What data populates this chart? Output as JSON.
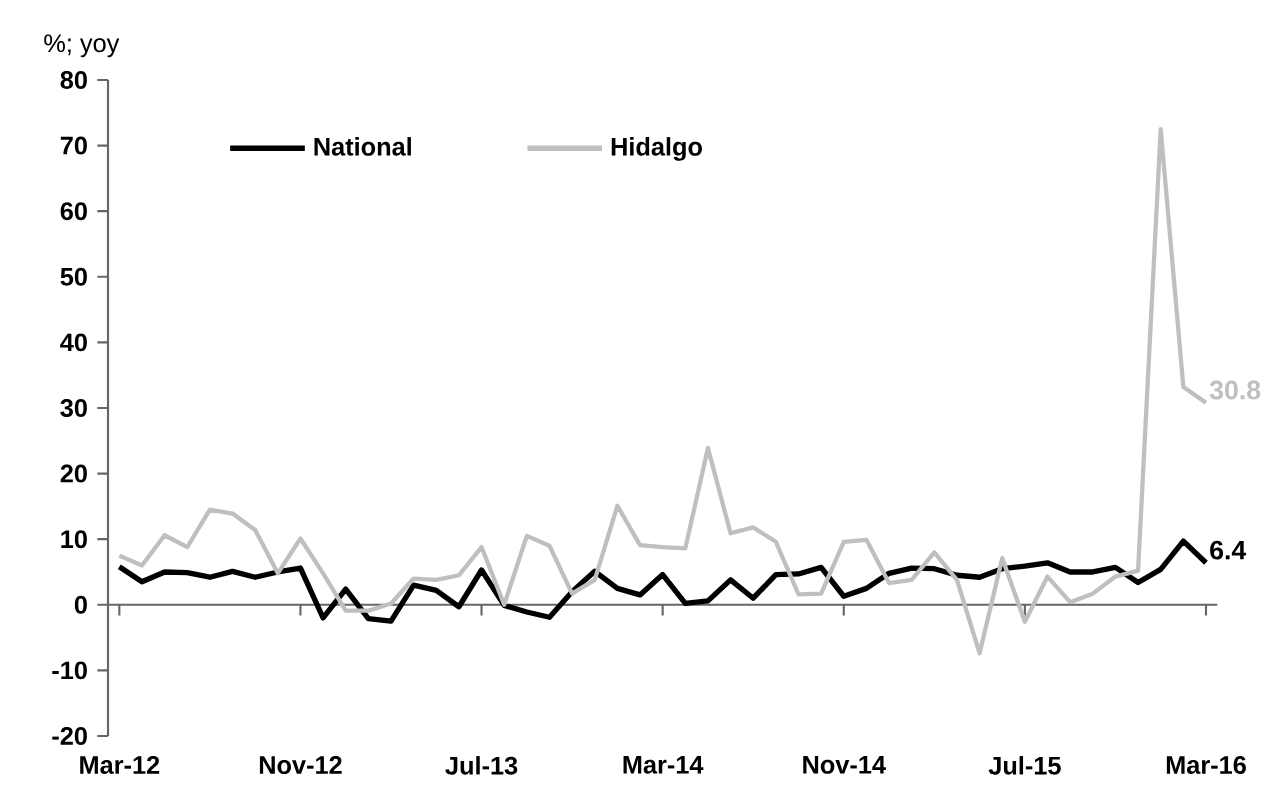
{
  "chart_data": {
    "type": "line",
    "ylabel": "%; yoy",
    "categories": [
      "Mar-12",
      null,
      null,
      null,
      null,
      null,
      null,
      null,
      "Nov-12",
      null,
      null,
      null,
      null,
      null,
      null,
      null,
      "Jul-13",
      null,
      null,
      null,
      null,
      null,
      null,
      null,
      "Mar-14",
      null,
      null,
      null,
      null,
      null,
      null,
      null,
      "Nov-14",
      null,
      null,
      null,
      null,
      null,
      null,
      null,
      "Jul-15",
      null,
      null,
      null,
      null,
      null,
      null,
      null,
      "Mar-16"
    ],
    "series": [
      {
        "name": "National",
        "color": "#000000",
        "values": [
          5.8,
          3.5,
          5.0,
          4.9,
          4.2,
          5.1,
          4.2,
          5.0,
          5.6,
          -2.0,
          2.4,
          -2.1,
          -2.5,
          3.0,
          2.2,
          -0.3,
          5.3,
          -0.1,
          -1.1,
          -1.9,
          2.0,
          5.1,
          2.5,
          1.5,
          4.6,
          0.2,
          0.6,
          3.8,
          1.0,
          4.6,
          4.7,
          5.7,
          1.3,
          2.5,
          4.8,
          5.6,
          5.5,
          4.5,
          4.2,
          5.5,
          5.9,
          6.4,
          5.0,
          5.0,
          5.7,
          3.4,
          5.4,
          9.7,
          6.4
        ]
      },
      {
        "name": "Hidalgo",
        "color": "#bfbfbf",
        "values": [
          7.5,
          6.0,
          10.6,
          8.8,
          14.5,
          13.9,
          11.4,
          4.8,
          10.1,
          4.8,
          -0.9,
          -0.9,
          0.2,
          4.0,
          3.8,
          4.5,
          8.8,
          0.0,
          10.5,
          9.0,
          1.7,
          3.8,
          15.1,
          9.1,
          8.8,
          8.6,
          23.9,
          10.9,
          11.8,
          9.6,
          1.6,
          1.7,
          9.6,
          9.9,
          3.3,
          3.8,
          8.0,
          3.8,
          -7.4,
          7.1,
          -2.6,
          4.3,
          0.4,
          1.7,
          4.3,
          5.2,
          72.5,
          33.2,
          30.8
        ]
      }
    ],
    "annotations": [
      {
        "text": "30.8",
        "x": "Mar-16",
        "y": 30.8
      },
      {
        "text": "6.4",
        "x": "Mar-16",
        "y": 6.4
      }
    ],
    "ylim": [
      -20,
      80
    ],
    "yticks": [
      -20,
      -10,
      0,
      10,
      20,
      30,
      40,
      50,
      60,
      70,
      80
    ],
    "legend": "top left",
    "marker": "none",
    "line_style": "solid"
  }
}
